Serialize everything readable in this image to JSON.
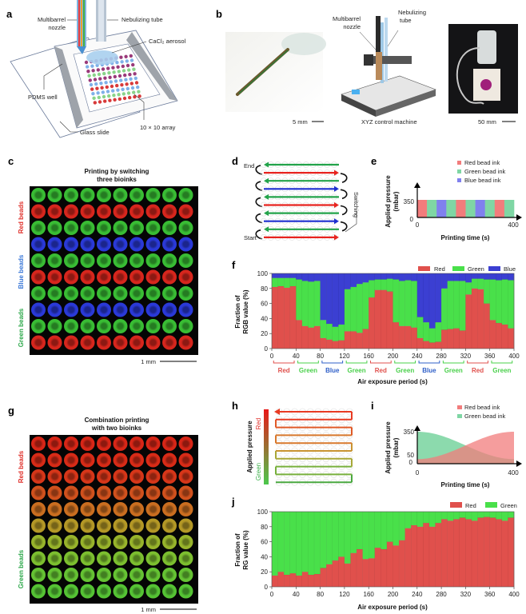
{
  "panels": {
    "a": {
      "label": "a",
      "multibarrel_1": "Multibarrel",
      "multibarrel_2": "nozzle",
      "nebulizing": "Nebulizing tube",
      "aerosol": "CaCl₂ aerosol",
      "pdms": "PDMS well",
      "array": "10 × 10 array",
      "glass": "Glass slide"
    },
    "b": {
      "label": "b",
      "multibarrel_1": "Multibarrel",
      "multibarrel_2": "nozzle",
      "nebulizing_1": "Nebulizing",
      "nebulizing_2": "tube",
      "scale_pen": "5 mm",
      "machine": "XYZ control machine",
      "scale_humidifier": "50 mm"
    },
    "c": {
      "label": "c",
      "title_1": "Printing by switching",
      "title_2": "three bioinks",
      "side_red": "Red beads",
      "side_blue": "Blue beads",
      "side_green": "Green beads",
      "scale": "1 mm",
      "row_colors": [
        "#3fd23a",
        "#ee2a20",
        "#3fd23a",
        "#2f3ff0",
        "#3fd23a",
        "#ee2a20",
        "#3fd23a",
        "#2f3ff0",
        "#3fd23a",
        "#ee2a20"
      ]
    },
    "d": {
      "label": "d",
      "end": "End",
      "start": "Start",
      "switching": "Switching",
      "rows": [
        "#22a34a",
        "#e8231f",
        "#22a34a",
        "#1d2fd0",
        "#22a34a",
        "#e8231f",
        "#22a34a",
        "#1d2fd0",
        "#22a34a",
        "#e8231f"
      ]
    },
    "e": {
      "label": "e",
      "legend": [
        "Red bead ink",
        "Green bead ink",
        "Blue bead ink"
      ],
      "ylabel_1": "Applied pressure",
      "ylabel_2": "(mbar)",
      "y350": "350",
      "y0": "0",
      "x0": "0",
      "x400": "400",
      "xlabel": "Printing time (s)",
      "sequence": [
        "red",
        "green",
        "blue",
        "green",
        "red",
        "green",
        "blue",
        "green",
        "red",
        "green"
      ]
    },
    "f": {
      "label": "f",
      "legend": [
        "Red",
        "Green",
        "Blue"
      ],
      "ylabel_1": "Fraction of",
      "ylabel_2": "RGB value (%)",
      "xlabel": "Air exposure period (s)",
      "brackets": [
        "Red",
        "Green",
        "Blue",
        "Green",
        "Red",
        "Green",
        "Blue",
        "Green",
        "Red",
        "Green"
      ]
    },
    "g": {
      "label": "g",
      "title_1": "Combination printing",
      "title_2": "with two bioinks",
      "side_red": "Red beads",
      "side_green": "Green beads",
      "scale": "1 mm",
      "row_colors": [
        "#f02a1a",
        "#f0301a",
        "#ee3c1c",
        "#e85a20",
        "#e07a24",
        "#c8a82a",
        "#a8c830",
        "#8ad434",
        "#70d838",
        "#5ed83a"
      ]
    },
    "h": {
      "label": "h",
      "ylabel": "Applied pressure",
      "red": "Red",
      "green": "Green"
    },
    "i": {
      "label": "i",
      "legend": [
        "Red bead ink",
        "Green bead ink"
      ],
      "ylabel_1": "Applied pressure",
      "ylabel_2": "(mbar)",
      "y350": "350",
      "y50": "50",
      "y0": "0",
      "x0": "0",
      "x400": "400",
      "xlabel": "Printing time (s)"
    },
    "j": {
      "label": "j",
      "legend": [
        "Red",
        "Green"
      ],
      "ylabel_1": "Fraction of",
      "ylabel_2": "RG value (%)",
      "xlabel": "Air exposure period (s)"
    }
  },
  "colors": {
    "red": "#e0504c",
    "green": "#49e04a",
    "blue": "#3b3fd2",
    "ink_red": "#f27c7c",
    "ink_green": "#7fd6a4",
    "ink_blue": "#8080ee"
  },
  "chart_data": [
    {
      "id": "f",
      "type": "bar",
      "stacked": true,
      "title": "",
      "xlabel": "Air exposure period (s)",
      "ylabel": "Fraction of RGB value (%)",
      "xlim": [
        0,
        400
      ],
      "ylim": [
        0,
        100
      ],
      "xticks": [
        0,
        40,
        80,
        120,
        160,
        200,
        240,
        280,
        320,
        360,
        400
      ],
      "yticks": [
        0,
        20,
        40,
        60,
        80,
        100
      ],
      "bin_width": 10,
      "series": [
        {
          "name": "Red",
          "values": [
            82,
            83,
            81,
            83,
            38,
            30,
            28,
            30,
            14,
            12,
            10,
            11,
            23,
            23,
            21,
            26,
            68,
            78,
            78,
            76,
            35,
            30,
            30,
            28,
            14,
            10,
            8,
            9,
            25,
            26,
            27,
            24,
            72,
            80,
            79,
            60,
            38,
            34,
            32,
            27
          ]
        },
        {
          "name": "Green",
          "values": [
            12,
            11,
            13,
            11,
            54,
            60,
            61,
            60,
            24,
            21,
            19,
            21,
            56,
            59,
            65,
            62,
            23,
            14,
            14,
            17,
            57,
            60,
            61,
            62,
            28,
            25,
            19,
            26,
            55,
            64,
            63,
            66,
            16,
            13,
            14,
            32,
            54,
            57,
            60,
            64
          ]
        },
        {
          "name": "Blue",
          "values": [
            6,
            6,
            6,
            6,
            8,
            10,
            11,
            10,
            62,
            67,
            71,
            68,
            21,
            18,
            14,
            12,
            9,
            8,
            8,
            7,
            8,
            10,
            9,
            10,
            58,
            65,
            73,
            65,
            20,
            10,
            10,
            10,
            12,
            7,
            7,
            8,
            8,
            9,
            8,
            9
          ]
        }
      ],
      "legend": "top-right"
    },
    {
      "id": "j",
      "type": "bar",
      "stacked": true,
      "title": "",
      "xlabel": "Air exposure period (s)",
      "ylabel": "Fraction of RG value (%)",
      "xlim": [
        0,
        400
      ],
      "ylim": [
        0,
        100
      ],
      "xticks": [
        0,
        40,
        80,
        120,
        160,
        200,
        240,
        280,
        320,
        360,
        400
      ],
      "yticks": [
        0,
        20,
        40,
        60,
        80,
        100
      ],
      "bin_width": 10,
      "series": [
        {
          "name": "Red",
          "values": [
            15,
            20,
            16,
            18,
            15,
            20,
            16,
            17,
            25,
            30,
            35,
            40,
            31,
            45,
            50,
            37,
            38,
            52,
            50,
            60,
            55,
            62,
            78,
            82,
            80,
            85,
            80,
            85,
            90,
            88,
            90,
            92,
            90,
            88,
            92,
            93,
            92,
            90,
            88,
            92
          ]
        },
        {
          "name": "Green",
          "values": [
            85,
            80,
            84,
            82,
            85,
            80,
            84,
            83,
            75,
            70,
            65,
            60,
            69,
            55,
            50,
            63,
            62,
            48,
            50,
            40,
            45,
            38,
            22,
            18,
            20,
            15,
            20,
            15,
            10,
            12,
            10,
            8,
            10,
            12,
            8,
            7,
            8,
            10,
            12,
            8
          ]
        }
      ],
      "legend": "top-right"
    }
  ]
}
